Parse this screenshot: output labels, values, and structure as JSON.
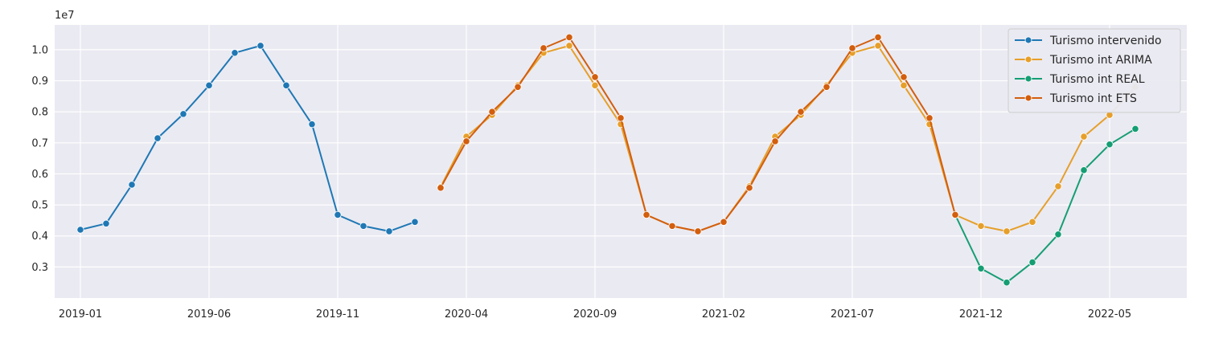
{
  "chart_data": {
    "type": "line",
    "title": "",
    "xlabel": "",
    "ylabel": "",
    "y_offset_label": "1e7",
    "x_tick_labels": [
      "2019-01",
      "2019-06",
      "2019-11",
      "2020-04",
      "2020-09",
      "2021-02",
      "2021-07",
      "2021-12",
      "2022-05"
    ],
    "y_tick_labels": [
      "0.3",
      "0.4",
      "0.5",
      "0.6",
      "0.7",
      "0.8",
      "0.9",
      "1.0"
    ],
    "y_ticks": [
      0.3,
      0.4,
      0.5,
      0.6,
      0.7,
      0.8,
      0.9,
      1.0
    ],
    "ylim": [
      0.2,
      1.08
    ],
    "xlim": [
      "2018-12",
      "2022-08"
    ],
    "grid": true,
    "legend_position": "top-right",
    "series": [
      {
        "name": "Turismo intervenido",
        "color": "#1f78b4",
        "x": [
          "2019-01",
          "2019-02",
          "2019-03",
          "2019-04",
          "2019-05",
          "2019-06",
          "2019-07",
          "2019-08",
          "2019-09",
          "2019-10",
          "2019-11",
          "2019-12",
          "2020-01",
          "2020-02"
        ],
        "y": [
          0.42,
          0.44,
          0.565,
          0.715,
          0.793,
          0.885,
          0.99,
          1.013,
          0.885,
          0.76,
          0.468,
          0.432,
          0.415,
          0.445
        ]
      },
      {
        "name": "Turismo int ARIMA",
        "color": "#e69f2a",
        "x": [
          "2020-03",
          "2020-04",
          "2020-05",
          "2020-06",
          "2020-07",
          "2020-08",
          "2020-09",
          "2020-10",
          "2020-11",
          "2020-12",
          "2021-01",
          "2021-02",
          "2021-03",
          "2021-04",
          "2021-05",
          "2021-06",
          "2021-07",
          "2021-08",
          "2021-09",
          "2021-10",
          "2021-11",
          "2021-12",
          "2022-01",
          "2022-02",
          "2022-03",
          "2022-04",
          "2022-05",
          "2022-06"
        ],
        "y": [
          0.558,
          0.72,
          0.79,
          0.885,
          0.99,
          1.013,
          0.885,
          0.76,
          0.468,
          0.432,
          0.415,
          0.445,
          0.56,
          0.72,
          0.79,
          0.885,
          0.99,
          1.013,
          0.885,
          0.76,
          0.468,
          0.432,
          0.415,
          0.445,
          0.56,
          0.72,
          0.79,
          0.88
        ]
      },
      {
        "name": "Turismo int REAL",
        "color": "#159e73",
        "x": [
          "2021-11",
          "2021-12",
          "2022-01",
          "2022-02",
          "2022-03",
          "2022-04",
          "2022-05",
          "2022-06"
        ],
        "y": [
          0.468,
          0.295,
          0.25,
          0.315,
          0.405,
          0.612,
          0.695,
          0.745
        ]
      },
      {
        "name": "Turismo int ETS",
        "color": "#d25e0e",
        "x": [
          "2020-03",
          "2020-04",
          "2020-05",
          "2020-06",
          "2020-07",
          "2020-08",
          "2020-09",
          "2020-10",
          "2020-11",
          "2020-12",
          "2021-01",
          "2021-02",
          "2021-03",
          "2021-04",
          "2021-05",
          "2021-06",
          "2021-07",
          "2021-08",
          "2021-09",
          "2021-10",
          "2021-11"
        ],
        "y": [
          0.555,
          0.705,
          0.8,
          0.88,
          1.005,
          1.04,
          0.912,
          0.78,
          0.468,
          0.432,
          0.415,
          0.445,
          0.555,
          0.705,
          0.8,
          0.88,
          1.005,
          1.04,
          0.912,
          0.78,
          0.468
        ]
      }
    ]
  }
}
